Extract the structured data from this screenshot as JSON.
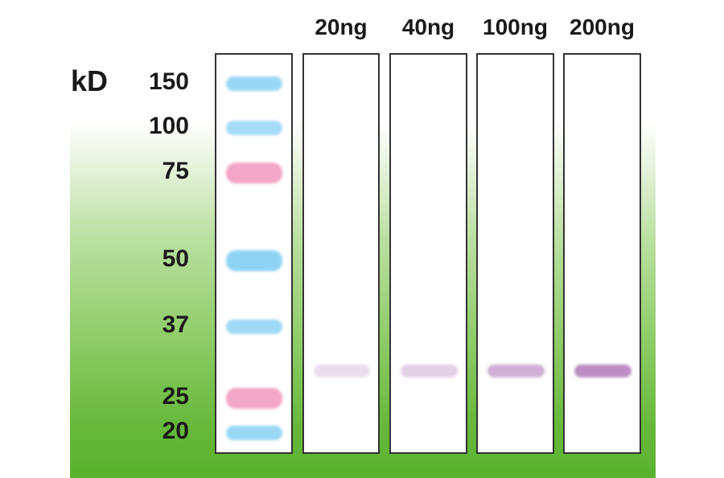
{
  "unit": "kD",
  "ladder": {
    "markers": [
      {
        "label": "150",
        "kd": 150,
        "color": "#8fd3f4",
        "intensity": 0.9
      },
      {
        "label": "100",
        "kd": 100,
        "color": "#8fd3f4",
        "intensity": 0.8
      },
      {
        "label": "75",
        "kd": 75,
        "color": "#f3a6c6",
        "intensity": 1.0
      },
      {
        "label": "50",
        "kd": 50,
        "color": "#8fd3f4",
        "intensity": 1.0
      },
      {
        "label": "37",
        "kd": 37,
        "color": "#8fd3f4",
        "intensity": 0.85
      },
      {
        "label": "25",
        "kd": 25,
        "color": "#f3a6c6",
        "intensity": 1.0
      },
      {
        "label": "20",
        "kd": 20,
        "color": "#8fd3f4",
        "intensity": 0.9
      }
    ]
  },
  "samples": [
    {
      "label": "20ng",
      "band_kd": 29,
      "intensity": 0.25
    },
    {
      "label": "40ng",
      "band_kd": 29,
      "intensity": 0.35
    },
    {
      "label": "100ng",
      "band_kd": 29,
      "intensity": 0.6
    },
    {
      "label": "200ng",
      "band_kd": 29,
      "intensity": 0.85
    }
  ],
  "colors": {
    "sample_band": "#b07ab8",
    "lane_border": "#333333",
    "background_green": "#5bb22f"
  }
}
